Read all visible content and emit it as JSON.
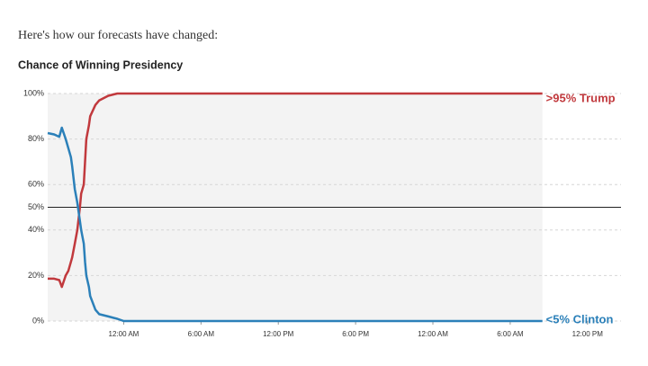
{
  "chart_data": {
    "type": "line",
    "intro": "Here's how our forecasts have changed:",
    "title": "Chance of Winning Presidency",
    "x": [
      -5.9,
      -5.4,
      -5.0,
      -4.8,
      -4.5,
      -4.3,
      -4.1,
      -4.0,
      -3.8,
      -3.6,
      -3.4,
      -3.3,
      -3.1,
      -3.0,
      -2.9,
      -2.7,
      -2.6,
      -2.2,
      -1.9,
      -1.2,
      -0.5,
      0,
      32.5
    ],
    "series": [
      {
        "name": "Trump",
        "color": "#c1393d",
        "values": [
          18.6,
          18.6,
          18,
          15,
          20,
          22,
          26,
          28,
          34,
          40,
          50,
          56,
          60,
          70,
          80,
          86,
          90,
          95,
          97,
          99,
          100,
          100,
          100
        ],
        "end_label": ">95% Trump"
      },
      {
        "name": "Clinton",
        "color": "#2b80b9",
        "values": [
          82.6,
          82,
          81,
          85,
          80,
          76,
          72,
          68,
          58,
          52,
          44,
          40,
          34,
          26,
          20,
          15,
          11,
          5,
          3,
          2,
          1,
          0,
          0
        ],
        "end_label": "<5% Clinton"
      }
    ],
    "xlim": [
      -5.9,
      38.6
    ],
    "xticks": [
      {
        "value": 0,
        "label": "12:00 AM"
      },
      {
        "value": 6,
        "label": "6:00 AM"
      },
      {
        "value": 12,
        "label": "12:00 PM"
      },
      {
        "value": 18,
        "label": "6:00 PM"
      },
      {
        "value": 24,
        "label": "12:00 AM"
      },
      {
        "value": 30,
        "label": "6:00 AM"
      },
      {
        "value": 36,
        "label": "12:00 PM"
      }
    ],
    "ylim": [
      0,
      100
    ],
    "yticks": [
      {
        "value": 0,
        "label": "0%"
      },
      {
        "value": 20,
        "label": "20%"
      },
      {
        "value": 40,
        "label": "40%"
      },
      {
        "value": 50,
        "label": "50%"
      },
      {
        "value": 60,
        "label": "60%"
      },
      {
        "value": 80,
        "label": "80%"
      },
      {
        "value": 100,
        "label": "100%"
      }
    ],
    "reference_line": 50,
    "grid": true
  }
}
